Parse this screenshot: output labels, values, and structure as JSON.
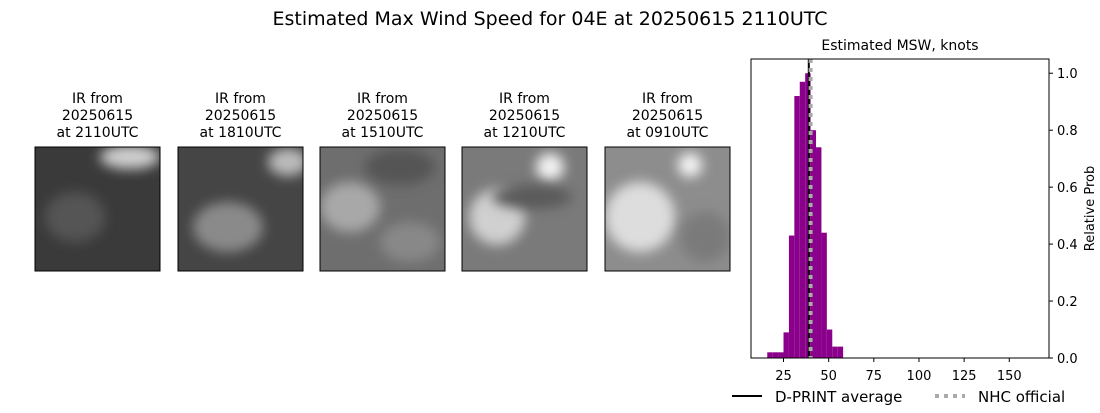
{
  "title": "Estimated Max Wind Speed for 04E at 20250615 2110UTC",
  "panels": [
    {
      "lines": [
        "IR from",
        "20250615",
        "at 2110UTC"
      ]
    },
    {
      "lines": [
        "IR from",
        "20250615",
        "at 1810UTC"
      ]
    },
    {
      "lines": [
        "IR from",
        "20250615",
        "at 1510UTC"
      ]
    },
    {
      "lines": [
        "IR from",
        "20250615",
        "at 1210UTC"
      ]
    },
    {
      "lines": [
        "IR from",
        "20250615",
        "at 0910UTC"
      ]
    }
  ],
  "chart_data": {
    "type": "histogram",
    "title": "Estimated MSW, knots",
    "ylabel": "Relative Prob",
    "bins": [
      16,
      19,
      22,
      25,
      28,
      31,
      34,
      37,
      40,
      43,
      46,
      49,
      52,
      55,
      58
    ],
    "values": [
      0.02,
      0.02,
      0.02,
      0.09,
      0.43,
      0.92,
      0.97,
      1.0,
      0.8,
      0.74,
      0.44,
      0.1,
      0.04,
      0.04
    ],
    "color": "#8b008b",
    "xlim": [
      7,
      172
    ],
    "xticks": [
      25,
      50,
      75,
      100,
      125,
      150
    ],
    "ylim": [
      0,
      1.05
    ],
    "yticks": [
      {
        "value": 0,
        "label": "0.0"
      },
      {
        "value": 0.2,
        "label": "0.2"
      },
      {
        "value": 0.4,
        "label": "0.4"
      },
      {
        "value": 0.6,
        "label": "0.6"
      },
      {
        "value": 0.8,
        "label": "0.8"
      },
      {
        "value": 1.0,
        "label": "1.0"
      }
    ],
    "yaxis_side": "right",
    "lines": [
      {
        "name": "D-PRINT average",
        "value": 39,
        "color": "#000000",
        "style": "solid"
      },
      {
        "name": "NHC official",
        "value": 40,
        "color": "#aaaaaa",
        "style": "dotted"
      }
    ],
    "legend": "bottom"
  }
}
